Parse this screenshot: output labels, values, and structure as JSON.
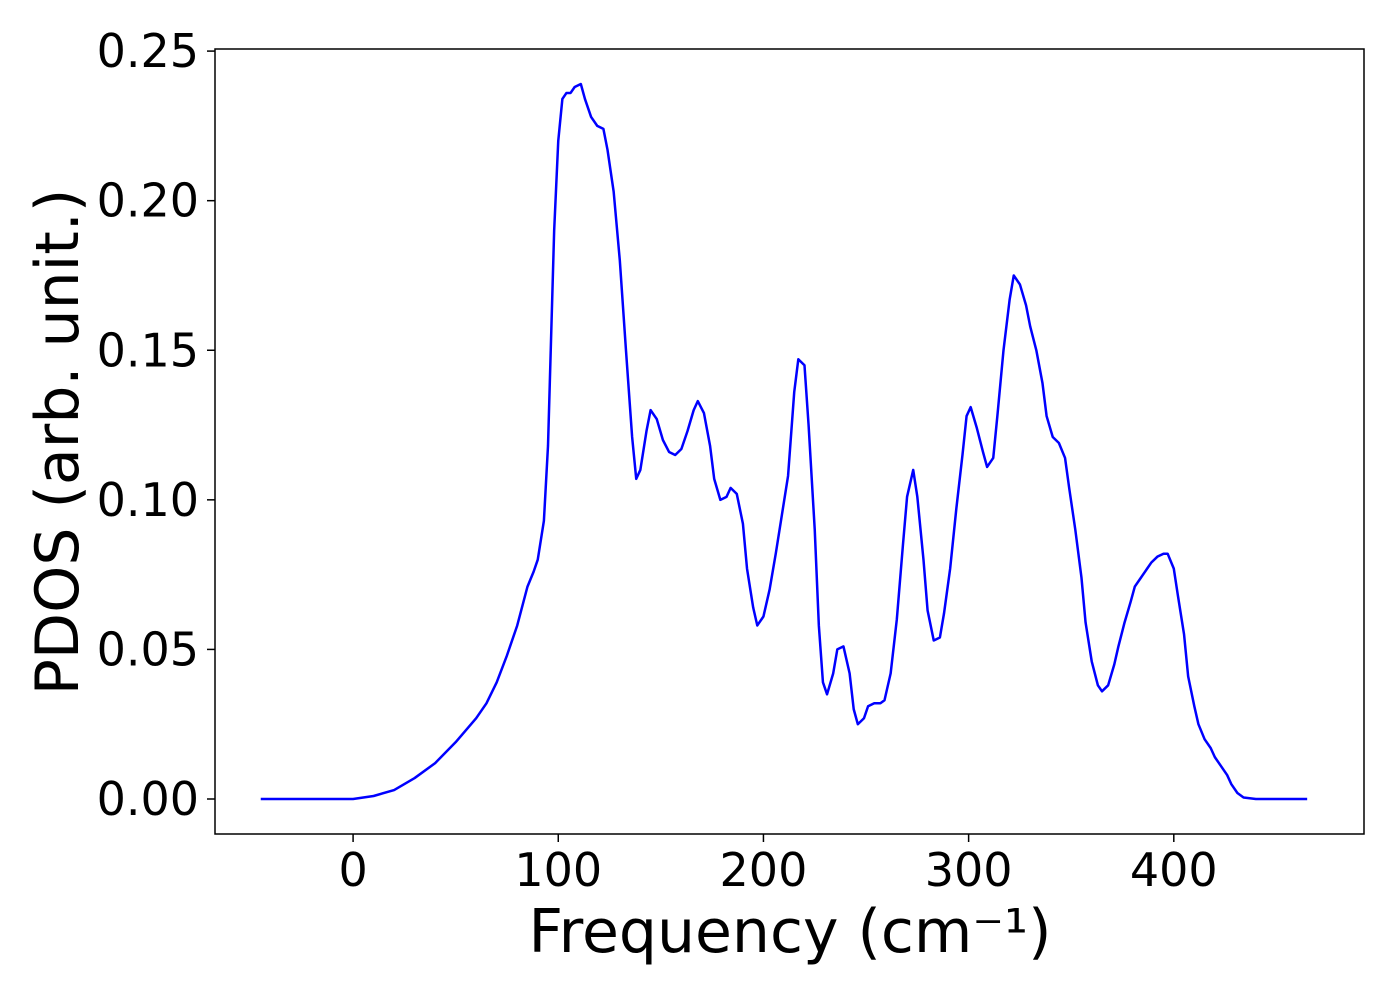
{
  "chart_data": {
    "type": "line",
    "xlabel": "Frequency (cm⁻¹)",
    "ylabel": "PDOS (arb. unit.)",
    "xlim": [
      -67.3,
      492.7
    ],
    "ylim": [
      -0.0117,
      0.2507
    ],
    "xticks": [
      0,
      100,
      200,
      300,
      400
    ],
    "yticks": [
      {
        "value": 0,
        "label": "0.00"
      },
      {
        "value": 0.05,
        "label": "0.05"
      },
      {
        "value": 0.1,
        "label": "0.10"
      },
      {
        "value": 0.15,
        "label": "0.15"
      },
      {
        "value": 0.2,
        "label": "0.20"
      },
      {
        "value": 0.25,
        "label": "0.25"
      }
    ],
    "grid": false,
    "series": [
      {
        "color": "#0000ff",
        "x": [
          -45,
          -20,
          0,
          10,
          20,
          30,
          40,
          50,
          60,
          65,
          70,
          75,
          80,
          85,
          88,
          90,
          93,
          95,
          98,
          100,
          102,
          104,
          106,
          108,
          111,
          113,
          116,
          119,
          122,
          124,
          127,
          130,
          133,
          136,
          138,
          140,
          143,
          145,
          148,
          151,
          154,
          157,
          160,
          163,
          166,
          168,
          171,
          174,
          176,
          179,
          182,
          184,
          187,
          190,
          192,
          195,
          197,
          200,
          203,
          206,
          209,
          212,
          215,
          217,
          220,
          222,
          225,
          227,
          229,
          231,
          234,
          236,
          239,
          242,
          244,
          246,
          249,
          251,
          254,
          257,
          259,
          262,
          265,
          268,
          270,
          273,
          275,
          278,
          280,
          283,
          286,
          288,
          291,
          294,
          297,
          299,
          301,
          304,
          307,
          309,
          312,
          314,
          317,
          320,
          322,
          325,
          328,
          330,
          333,
          336,
          338,
          341,
          344,
          347,
          349,
          352,
          355,
          357,
          360,
          363,
          365,
          368,
          371,
          373,
          376,
          379,
          381,
          384,
          387,
          389,
          392,
          395,
          397,
          400,
          402,
          405,
          407,
          410,
          412,
          415,
          418,
          420,
          423,
          426,
          428,
          431,
          434,
          440,
          465
        ],
        "values": [
          0,
          0,
          0,
          0.001,
          0.003,
          0.007,
          0.012,
          0.019,
          0.027,
          0.032,
          0.039,
          0.048,
          0.058,
          0.071,
          0.076,
          0.08,
          0.093,
          0.118,
          0.19,
          0.22,
          0.234,
          0.236,
          0.236,
          0.238,
          0.239,
          0.234,
          0.228,
          0.225,
          0.224,
          0.217,
          0.203,
          0.18,
          0.15,
          0.121,
          0.107,
          0.11,
          0.123,
          0.13,
          0.127,
          0.12,
          0.116,
          0.115,
          0.117,
          0.123,
          0.13,
          0.133,
          0.129,
          0.118,
          0.107,
          0.1,
          0.101,
          0.104,
          0.102,
          0.092,
          0.077,
          0.064,
          0.058,
          0.061,
          0.07,
          0.082,
          0.095,
          0.108,
          0.136,
          0.147,
          0.145,
          0.125,
          0.09,
          0.058,
          0.039,
          0.035,
          0.042,
          0.05,
          0.051,
          0.042,
          0.03,
          0.025,
          0.027,
          0.031,
          0.032,
          0.032,
          0.033,
          0.042,
          0.06,
          0.085,
          0.101,
          0.11,
          0.101,
          0.08,
          0.063,
          0.053,
          0.054,
          0.062,
          0.077,
          0.097,
          0.115,
          0.128,
          0.131,
          0.124,
          0.116,
          0.111,
          0.114,
          0.128,
          0.15,
          0.167,
          0.175,
          0.172,
          0.165,
          0.158,
          0.15,
          0.139,
          0.128,
          0.121,
          0.119,
          0.114,
          0.104,
          0.09,
          0.074,
          0.059,
          0.046,
          0.038,
          0.036,
          0.038,
          0.045,
          0.051,
          0.059,
          0.066,
          0.071,
          0.074,
          0.077,
          0.079,
          0.081,
          0.082,
          0.082,
          0.077,
          0.068,
          0.055,
          0.041,
          0.031,
          0.025,
          0.02,
          0.017,
          0.014,
          0.011,
          0.008,
          0.005,
          0.002,
          0.0005,
          0,
          0
        ]
      }
    ]
  }
}
